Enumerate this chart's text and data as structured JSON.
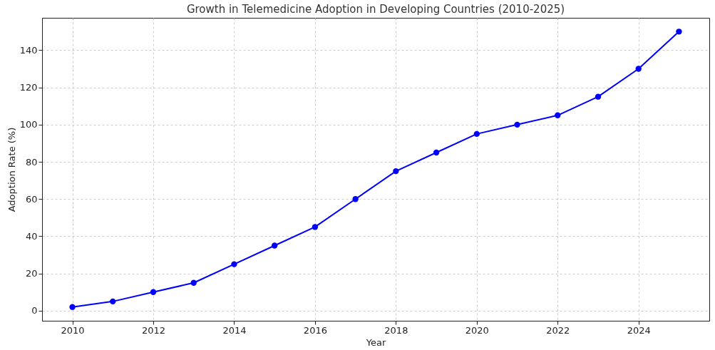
{
  "chart_data": {
    "type": "line",
    "title": "Growth in Telemedicine Adoption in Developing Countries (2010-2025)",
    "xlabel": "Year",
    "ylabel": "Adoption Rate (%)",
    "x": [
      2010,
      2011,
      2012,
      2013,
      2014,
      2015,
      2016,
      2017,
      2018,
      2019,
      2020,
      2021,
      2022,
      2023,
      2024,
      2025
    ],
    "series": [
      {
        "color": "#0000ff",
        "values": [
          2,
          5,
          10,
          15,
          25,
          35,
          45,
          60,
          75,
          85,
          95,
          100,
          105,
          115,
          130,
          150
        ]
      }
    ],
    "xlim": [
      2009.25,
      2025.75
    ],
    "xticks": [
      2010,
      2012,
      2014,
      2016,
      2018,
      2020,
      2022,
      2024
    ],
    "ylim": [
      -5.4,
      157.4
    ],
    "yticks": [
      0,
      20,
      40,
      60,
      80,
      100,
      120,
      140
    ],
    "grid": true,
    "marker": "circle",
    "line_style": "solid"
  }
}
